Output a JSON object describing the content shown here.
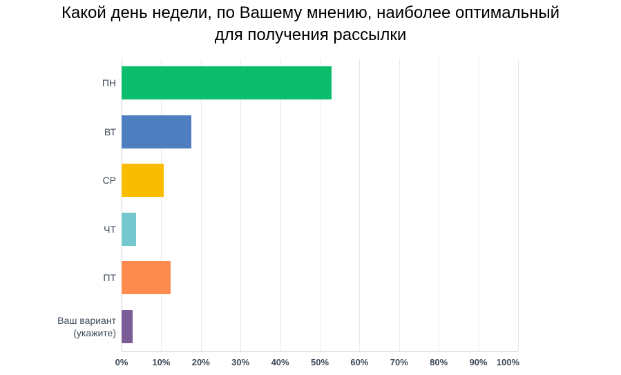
{
  "chart_data": {
    "type": "bar",
    "orientation": "horizontal",
    "title": "Какой день недели, по Вашему мнению, наиболее оптимальный для получения рассылки",
    "title_lines": [
      "Какой день недели, по Вашему мнению, наиболее оптимальный",
      "для получения рассылки"
    ],
    "categories": [
      "ПН",
      "ВТ",
      "СР",
      "ЧТ",
      "ПТ",
      "Ваш вариант\n(укажите)"
    ],
    "values": [
      53,
      17.6,
      10.6,
      3.6,
      12.4,
      2.8
    ],
    "unit": "%",
    "bar_colors": [
      "#0dbd6e",
      "#4e7ebf",
      "#f9bc00",
      "#74c7cd",
      "#fc8b4d",
      "#7a5c96"
    ],
    "xlabel": "",
    "ylabel": "",
    "xlim": [
      0,
      100
    ],
    "xticks": [
      0,
      10,
      20,
      30,
      40,
      50,
      60,
      70,
      80,
      90,
      100
    ],
    "xtick_labels": [
      "0%",
      "10%",
      "20%",
      "30%",
      "40%",
      "50%",
      "60%",
      "70%",
      "80%",
      "90%",
      "100%"
    ],
    "grid": "vertical",
    "legend": "none",
    "text_color": "#3d4a59",
    "title_color": "#000000",
    "gridline_color": "#e9eaec",
    "axis_line_color": "#c9cdd3"
  }
}
